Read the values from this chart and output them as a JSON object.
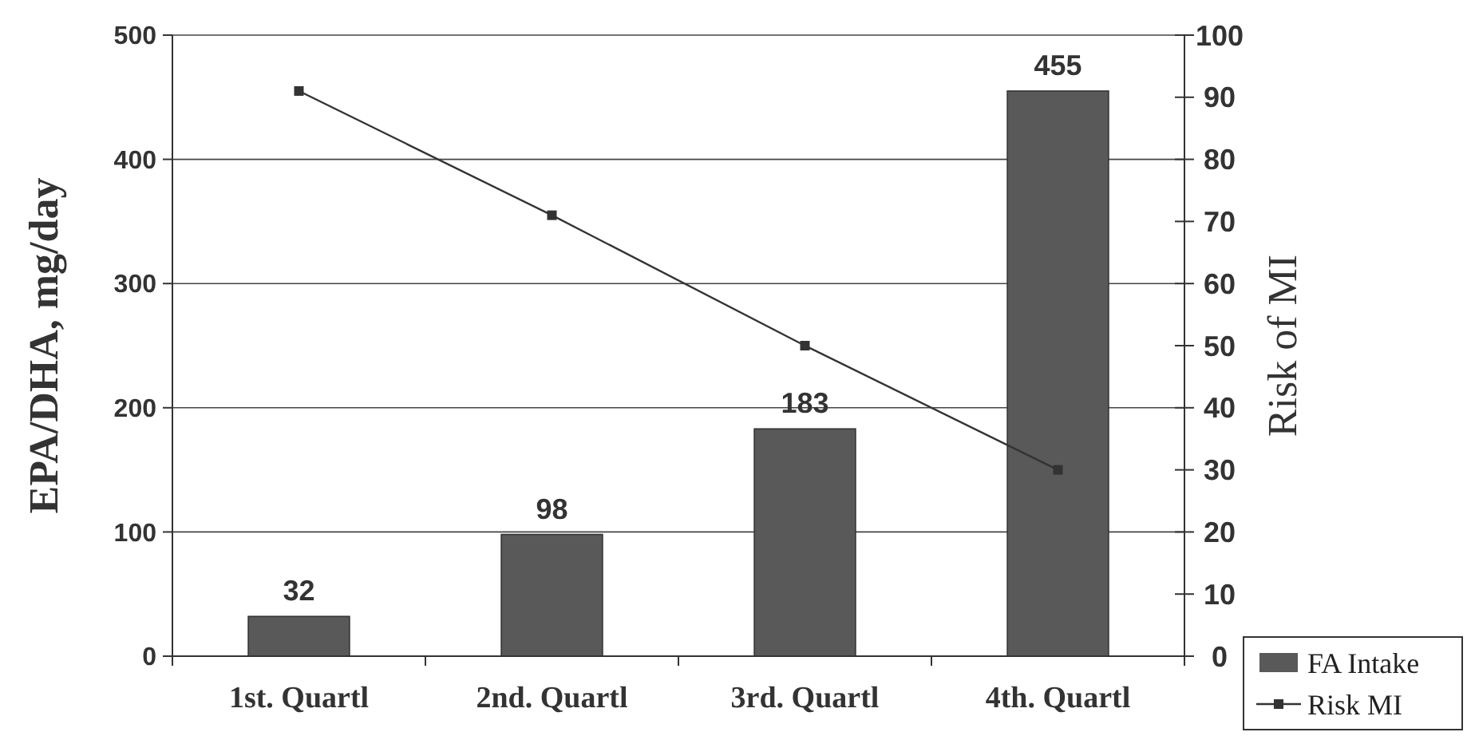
{
  "chart_data": {
    "type": "bar",
    "categories": [
      "1st. Quartl",
      "2nd. Quartl",
      "3rd. Quartl",
      "4th. Quartl"
    ],
    "series": [
      {
        "name": "FA Intake",
        "color": "#595959",
        "values": [
          32,
          98,
          183,
          455
        ]
      },
      {
        "name": "Risk MI",
        "type": "line",
        "axis": "y2",
        "color": "#333333",
        "values": [
          91,
          71,
          50,
          30
        ],
        "marker": "square"
      }
    ],
    "value_labels": [
      "32",
      "98",
      "183",
      "455"
    ],
    "ylabel": "EPA/DHA, mg/day",
    "y2label": "Risk of MI",
    "ylim": [
      0,
      500
    ],
    "yticks": [
      0,
      100,
      200,
      300,
      400,
      500
    ],
    "y2lim": [
      0,
      100
    ],
    "y2ticks": [
      0,
      10,
      20,
      30,
      40,
      50,
      60,
      70,
      80,
      90,
      100
    ],
    "grid": "y",
    "legend": "bottom right"
  }
}
